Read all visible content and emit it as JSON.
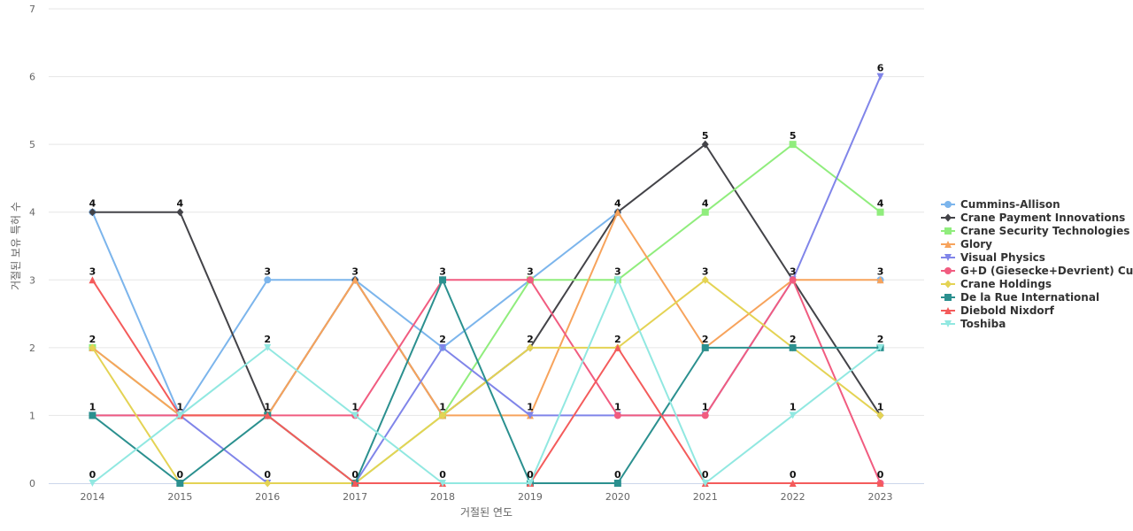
{
  "chart_data": {
    "type": "line",
    "xlabel": "거절된 연도",
    "ylabel": "거절된 보유 특허 수",
    "ylim": [
      0,
      7
    ],
    "y_ticks": [
      0,
      1,
      2,
      3,
      4,
      5,
      6,
      7
    ],
    "categories": [
      "2014",
      "2015",
      "2016",
      "2017",
      "2018",
      "2019",
      "2020",
      "2021",
      "2022",
      "2023"
    ],
    "grid": true,
    "legend_position": "right",
    "series": [
      {
        "name": "Cummins-Allison",
        "color": "#7cb5ec",
        "marker": "circle",
        "values": [
          4,
          1,
          3,
          3,
          2,
          3,
          4,
          null,
          null,
          3
        ]
      },
      {
        "name": "Crane Payment Innovations",
        "color": "#434348",
        "marker": "diamond",
        "values": [
          4,
          4,
          1,
          3,
          1,
          2,
          4,
          5,
          3,
          1
        ]
      },
      {
        "name": "Crane Security Technologies",
        "color": "#90ed7d",
        "marker": "square",
        "values": [
          2,
          1,
          1,
          0,
          1,
          3,
          3,
          4,
          5,
          4
        ]
      },
      {
        "name": "Glory",
        "color": "#f7a35c",
        "marker": "triangle",
        "values": [
          2,
          1,
          1,
          3,
          1,
          1,
          4,
          2,
          3,
          3
        ]
      },
      {
        "name": "Visual Physics",
        "color": "#8085e9",
        "marker": "triangle-down",
        "values": [
          1,
          1,
          0,
          0,
          2,
          1,
          1,
          1,
          3,
          6
        ]
      },
      {
        "name": "G+D (Giesecke+Devrient) Cur...",
        "color": "#f15c80",
        "marker": "circle",
        "values": [
          1,
          1,
          1,
          1,
          3,
          3,
          1,
          1,
          3,
          0
        ]
      },
      {
        "name": "Crane Holdings",
        "color": "#e4d354",
        "marker": "diamond",
        "values": [
          2,
          0,
          0,
          0,
          1,
          2,
          2,
          3,
          2,
          1
        ]
      },
      {
        "name": "De la Rue International",
        "color": "#2b908f",
        "marker": "square",
        "values": [
          1,
          0,
          1,
          0,
          3,
          0,
          0,
          2,
          2,
          2
        ]
      },
      {
        "name": "Diebold Nixdorf",
        "color": "#f45b5b",
        "marker": "triangle",
        "values": [
          3,
          1,
          1,
          0,
          0,
          0,
          2,
          0,
          0,
          0
        ]
      },
      {
        "name": "Toshiba",
        "color": "#91e8e1",
        "marker": "triangle-down",
        "values": [
          0,
          1,
          2,
          1,
          0,
          0,
          3,
          0,
          1,
          2
        ]
      }
    ],
    "data_labels": [
      [
        "4",
        "4",
        "3",
        "3",
        "3",
        "3",
        "4",
        "5",
        "5",
        "6"
      ],
      [
        "3",
        "1",
        "2",
        "1",
        "2",
        "2",
        "3",
        "4",
        "3",
        "4"
      ],
      [
        "2",
        "0",
        "1",
        "0",
        "1",
        "1",
        "2",
        "3",
        "2",
        "3"
      ],
      [
        "1",
        "",
        "0",
        "",
        "0",
        "0",
        "1",
        "2",
        "1",
        "2"
      ],
      [
        "0",
        "",
        "",
        "",
        "",
        "",
        "0",
        "1",
        "0",
        "1"
      ],
      [
        "",
        "",
        "",
        "",
        "",
        "",
        "",
        "0",
        "",
        "0"
      ]
    ]
  }
}
